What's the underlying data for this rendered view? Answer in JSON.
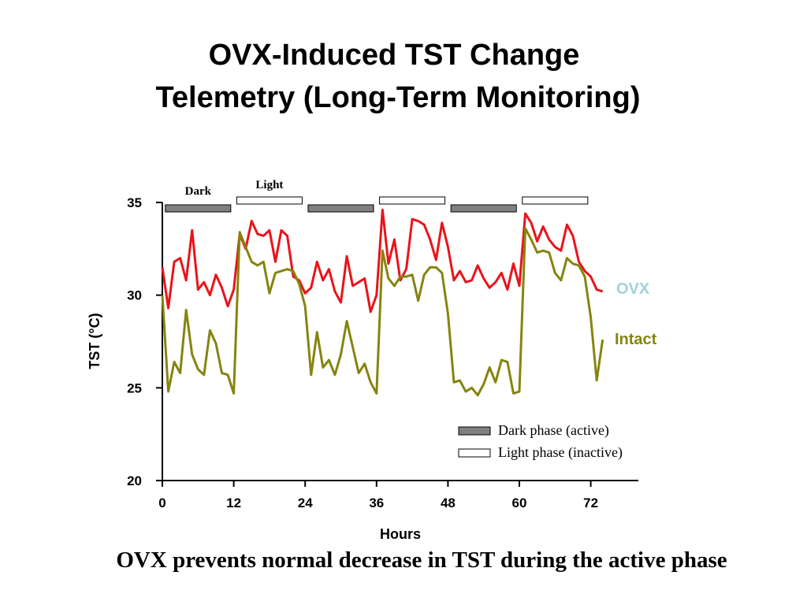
{
  "chart_data": {
    "type": "line",
    "title": [
      "OVX-Induced TST Change",
      "Telemetry (Long-Term Monitoring)"
    ],
    "caption": "OVX prevents normal decrease in TST during the active phase",
    "x_label": "Hours",
    "y_label": "TST (°C)",
    "xlim": [
      0,
      80
    ],
    "xticks": [
      0,
      12,
      24,
      36,
      48,
      60,
      72
    ],
    "ylim": [
      20,
      35
    ],
    "yticks": [
      20,
      25,
      30,
      35
    ],
    "x": [
      0,
      1,
      2,
      3,
      4,
      5,
      6,
      7,
      8,
      9,
      10,
      11,
      12,
      13,
      14,
      15,
      16,
      17,
      18,
      19,
      20,
      21,
      22,
      23,
      24,
      25,
      26,
      27,
      28,
      29,
      30,
      31,
      32,
      33,
      34,
      35,
      36,
      37,
      38,
      39,
      40,
      41,
      42,
      43,
      44,
      45,
      46,
      47,
      48,
      49,
      50,
      51,
      52,
      53,
      54,
      55,
      56,
      57,
      58,
      59,
      60,
      61,
      62,
      63,
      64,
      65,
      66,
      67,
      68,
      69,
      70,
      71,
      72,
      73,
      74
    ],
    "series": [
      {
        "name": "OVX",
        "color": "#e8141b",
        "label_color": "#9fd3dc",
        "values": [
          31.5,
          29.3,
          31.8,
          32.0,
          30.8,
          33.5,
          30.3,
          30.7,
          30.0,
          31.1,
          30.4,
          29.4,
          30.3,
          33.3,
          32.5,
          34.0,
          33.3,
          33.2,
          33.5,
          31.8,
          33.5,
          33.2,
          31.0,
          30.8,
          30.1,
          30.4,
          31.8,
          30.8,
          31.4,
          30.2,
          29.6,
          32.1,
          30.5,
          30.7,
          30.9,
          29.1,
          30.0,
          34.6,
          31.7,
          33.0,
          30.8,
          31.4,
          34.1,
          34.0,
          33.8,
          33.0,
          31.9,
          33.9,
          32.6,
          30.8,
          31.3,
          30.7,
          30.8,
          31.6,
          30.9,
          30.4,
          30.7,
          31.2,
          30.3,
          31.7,
          30.5,
          34.4,
          33.9,
          32.9,
          33.7,
          33.0,
          32.6,
          32.4,
          33.8,
          33.2,
          31.8,
          31.3,
          31.0,
          30.3,
          30.2
        ]
      },
      {
        "name": "Intact",
        "color": "#858510",
        "label_color": "#858510",
        "values": [
          30.0,
          24.8,
          26.4,
          25.8,
          29.2,
          26.8,
          26.0,
          25.7,
          28.1,
          27.4,
          25.8,
          25.7,
          24.7,
          33.4,
          32.6,
          31.8,
          31.6,
          31.8,
          30.1,
          31.2,
          31.3,
          31.4,
          31.3,
          30.6,
          29.4,
          25.7,
          28.0,
          26.1,
          26.5,
          25.7,
          26.8,
          28.6,
          27.2,
          25.8,
          26.3,
          25.3,
          24.7,
          32.4,
          30.9,
          30.5,
          31.0,
          31.0,
          31.1,
          29.7,
          31.1,
          31.5,
          31.5,
          31.2,
          29.0,
          25.3,
          25.4,
          24.8,
          25.0,
          24.6,
          25.2,
          26.1,
          25.3,
          26.5,
          26.4,
          24.7,
          24.8,
          33.6,
          33.0,
          32.3,
          32.4,
          32.3,
          31.2,
          30.8,
          32.0,
          31.7,
          31.6,
          31.0,
          28.8,
          25.4,
          27.6
        ]
      }
    ],
    "phases": {
      "dark": {
        "label": "Dark",
        "legend": "Dark phase (active)",
        "color": "#808080",
        "intervals": [
          [
            0.5,
            11.5
          ],
          [
            24.5,
            35.5
          ],
          [
            48.5,
            59.5
          ]
        ]
      },
      "light": {
        "label": "Light",
        "legend": "Light phase (inactive)",
        "color": "#ffffff",
        "intervals": [
          [
            12.5,
            23.5
          ],
          [
            36.5,
            47.5
          ],
          [
            60.5,
            71.5
          ]
        ]
      }
    }
  }
}
